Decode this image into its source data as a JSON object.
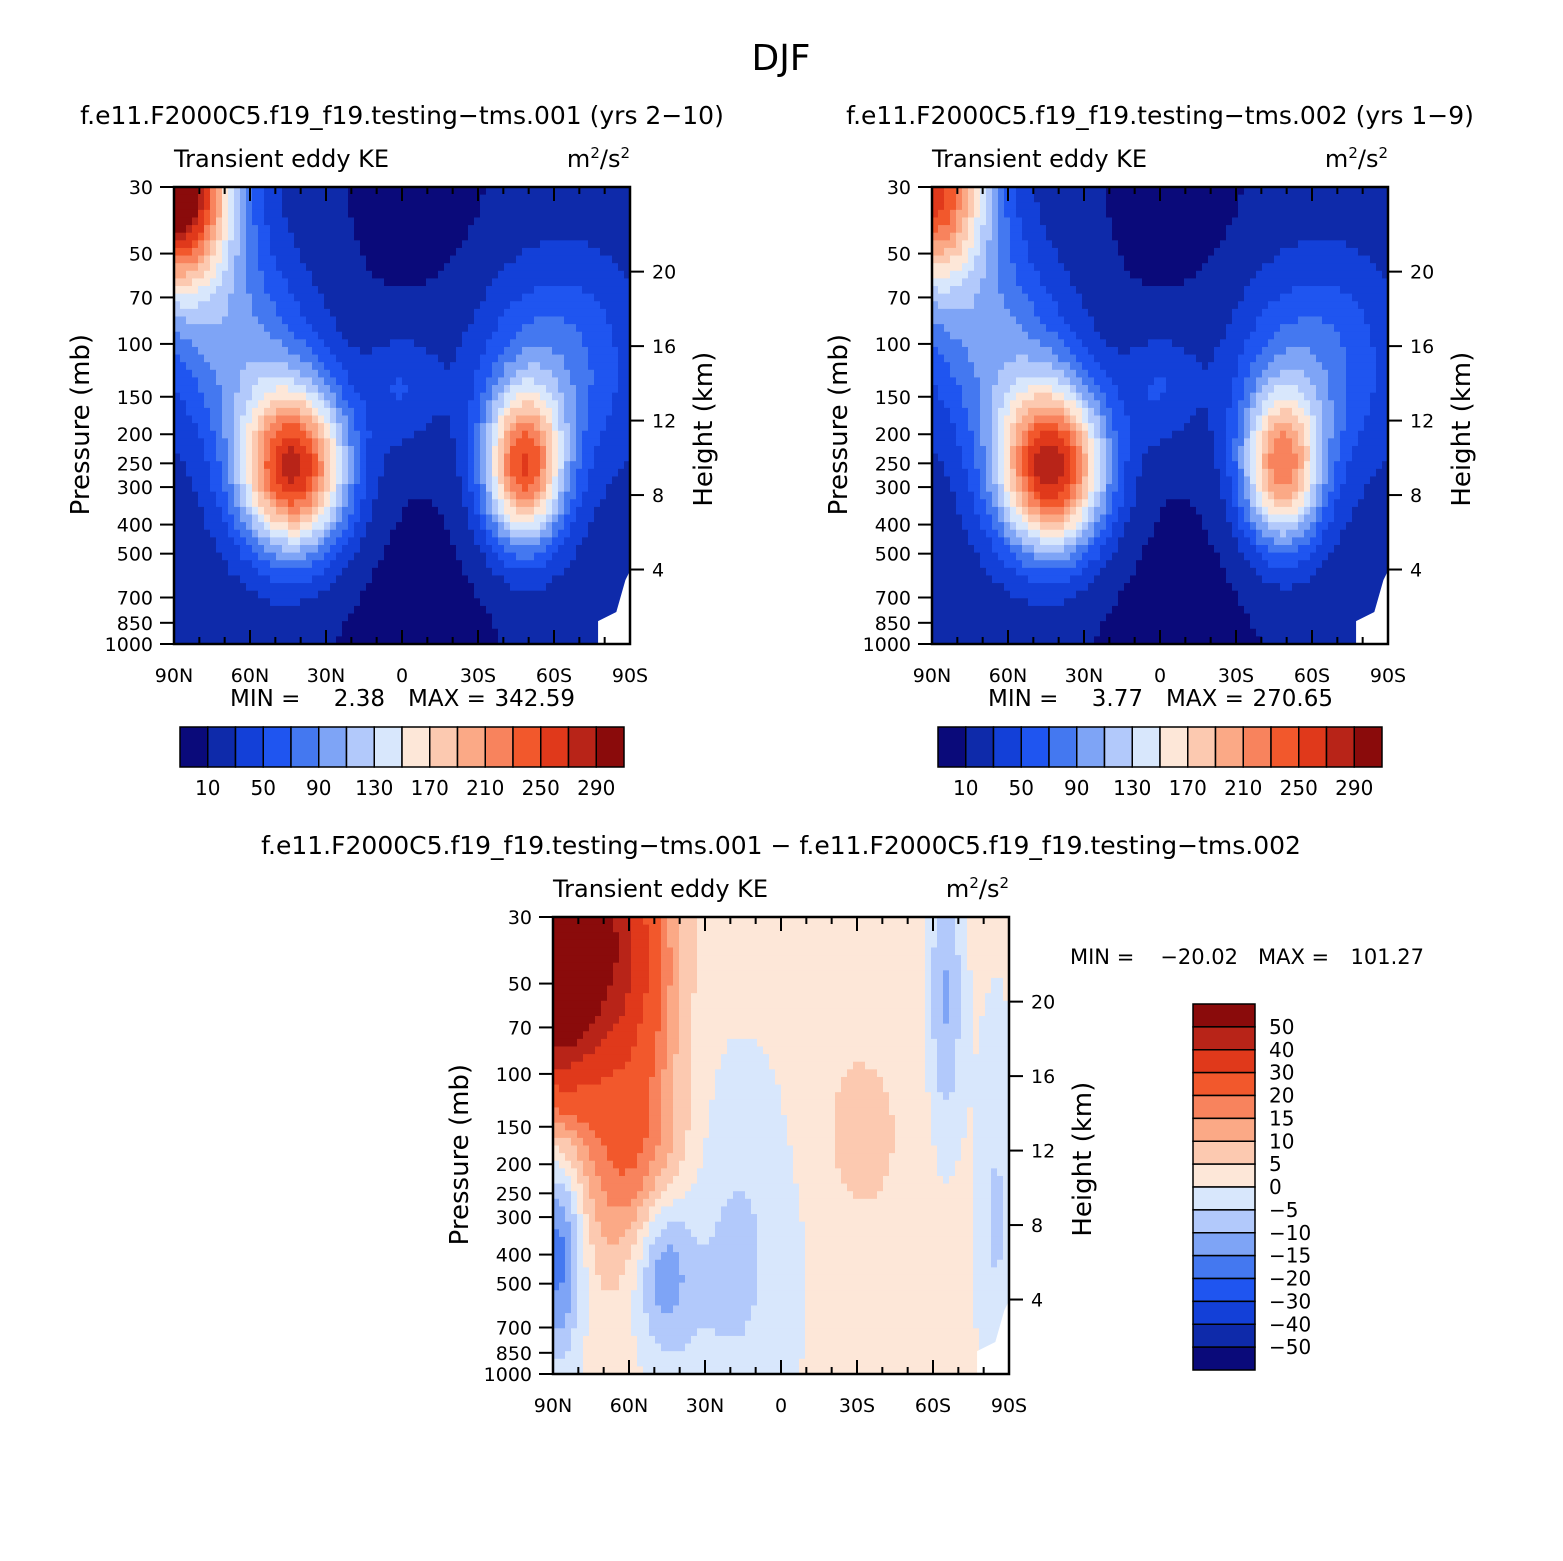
{
  "figure": {
    "title": "DJF",
    "diff_title": "f.e11.F2000C5.f19_f19.testing−tms.001  −  f.e11.F2000C5.f19_f19.testing−tms.002"
  },
  "chart_data": [
    {
      "type": "heatmap",
      "title": "f.e11.F2000C5.f19_f19.testing−tms.001 (yrs 2−10)",
      "left_string": "Transient eddy KE",
      "units_base": "m",
      "units_sup1": "2",
      "units_mid": "/s",
      "units_sup2": "2",
      "ylabel": "Pressure (mb)",
      "ylabel_right": "Height (km)",
      "y_ticks": [
        "30",
        "50",
        "70",
        "100",
        "150",
        "200",
        "250",
        "300",
        "400",
        "500",
        "700",
        "850",
        "1000"
      ],
      "height_ticks": [
        "20",
        "16",
        "12",
        "8",
        "4"
      ],
      "x_ticks": [
        "90N",
        "60N",
        "30N",
        "0",
        "30S",
        "60S",
        "90S"
      ],
      "min_label": "MIN =",
      "min_value": "2.38",
      "max_label": "MAX =",
      "max_value": "342.59",
      "colorbar_labels": [
        "10",
        "50",
        "90",
        "130",
        "170",
        "210",
        "250",
        "290"
      ],
      "colors": [
        "#0a0a7a",
        "#0e2aaa",
        "#1340d8",
        "#1f55f0",
        "#4478f0",
        "#7ea4f6",
        "#b2c9fb",
        "#d8e7fc",
        "#fde7d8",
        "#fcc9b0",
        "#fba986",
        "#f8835d",
        "#f2582c",
        "#e0391b",
        "#b82418",
        "#8a0b0b"
      ],
      "features": [
        {
          "lat": -45,
          "p": 260,
          "value": 250
        },
        {
          "lat": -80,
          "p": 30,
          "value": 342.59
        },
        {
          "lat": 48,
          "p": 270,
          "value": 210
        },
        {
          "lat": 0,
          "p": 140,
          "value": 90
        },
        {
          "lat": 5,
          "p": 800,
          "value": 2.38
        }
      ]
    },
    {
      "type": "heatmap",
      "title": "f.e11.F2000C5.f19_f19.testing−tms.002 (yrs 1−9)",
      "left_string": "Transient eddy KE",
      "units_base": "m",
      "units_sup1": "2",
      "units_mid": "/s",
      "units_sup2": "2",
      "ylabel": "Pressure (mb)",
      "ylabel_right": "Height (km)",
      "y_ticks": [
        "30",
        "50",
        "70",
        "100",
        "150",
        "200",
        "250",
        "300",
        "400",
        "500",
        "700",
        "850",
        "1000"
      ],
      "height_ticks": [
        "20",
        "16",
        "12",
        "8",
        "4"
      ],
      "x_ticks": [
        "90N",
        "60N",
        "30N",
        "0",
        "30S",
        "60S",
        "90S"
      ],
      "min_label": "MIN =",
      "min_value": "3.77",
      "max_label": "MAX =",
      "max_value": "270.65",
      "colorbar_labels": [
        "10",
        "50",
        "90",
        "130",
        "170",
        "210",
        "250",
        "290"
      ],
      "colors": [
        "#0a0a7a",
        "#0e2aaa",
        "#1340d8",
        "#1f55f0",
        "#4478f0",
        "#7ea4f6",
        "#b2c9fb",
        "#d8e7fc",
        "#fde7d8",
        "#fcc9b0",
        "#fba986",
        "#f8835d",
        "#f2582c",
        "#e0391b",
        "#b82418",
        "#8a0b0b"
      ],
      "features": [
        {
          "lat": -45,
          "p": 270,
          "value": 270.65
        },
        {
          "lat": -78,
          "p": 30,
          "value": 240
        },
        {
          "lat": 48,
          "p": 260,
          "value": 190
        },
        {
          "lat": 0,
          "p": 140,
          "value": 90
        },
        {
          "lat": 10,
          "p": 800,
          "value": 3.77
        }
      ]
    },
    {
      "type": "heatmap",
      "title": "f.e11.F2000C5.f19_f19.testing−tms.001  −  f.e11.F2000C5.f19_f19.testing−tms.002",
      "left_string": "Transient eddy KE",
      "units_base": "m",
      "units_sup1": "2",
      "units_mid": "/s",
      "units_sup2": "2",
      "ylabel": "Pressure (mb)",
      "ylabel_right": "Height (km)",
      "y_ticks": [
        "30",
        "50",
        "70",
        "100",
        "150",
        "200",
        "250",
        "300",
        "400",
        "500",
        "700",
        "850",
        "1000"
      ],
      "height_ticks": [
        "20",
        "16",
        "12",
        "8",
        "4"
      ],
      "x_ticks": [
        "90N",
        "60N",
        "30N",
        "0",
        "30S",
        "60S",
        "90S"
      ],
      "min_label": "MIN =",
      "min_value": "−20.02",
      "max_label": "MAX =",
      "max_value": "101.27",
      "colorbar_labels": [
        "50",
        "40",
        "30",
        "20",
        "15",
        "10",
        "5",
        "0",
        "−5",
        "−10",
        "−15",
        "−20",
        "−30",
        "−40",
        "−50"
      ],
      "colors": [
        "#8a0b0b",
        "#b82418",
        "#e0391b",
        "#f2582c",
        "#f8835d",
        "#fba986",
        "#fcc9b0",
        "#fde7d8",
        "#d8e7fc",
        "#b2c9fb",
        "#7ea4f6",
        "#4478f0",
        "#1f55f0",
        "#1340d8",
        "#0e2aaa",
        "#0a0a7a"
      ],
      "features": [
        {
          "lat": -88,
          "p": 30,
          "value": 101.27
        },
        {
          "lat": -60,
          "p": 40,
          "value": 30
        },
        {
          "lat": -58,
          "p": 220,
          "value": 20
        },
        {
          "lat": -85,
          "p": 350,
          "value": -20
        },
        {
          "lat": -48,
          "p": 420,
          "value": -15
        },
        {
          "lat": 65,
          "p": 60,
          "value": -15
        }
      ]
    }
  ]
}
